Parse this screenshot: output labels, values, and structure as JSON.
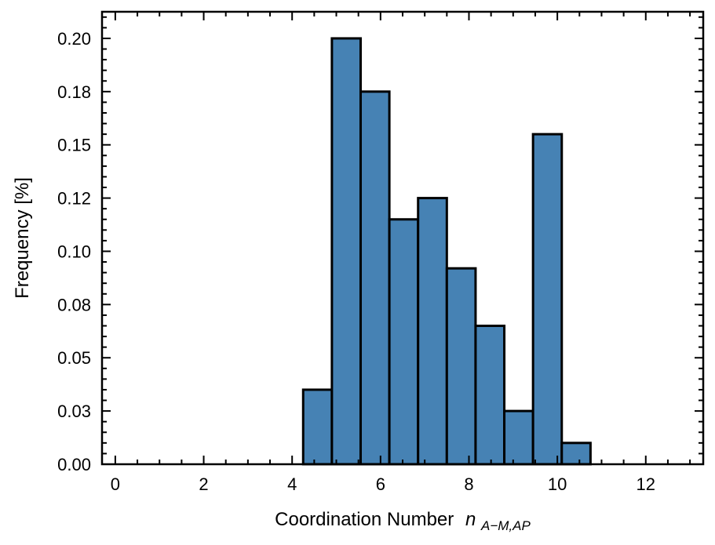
{
  "chart_data": {
    "type": "bar",
    "xlabel": "Coordination Number",
    "xlabel_math": {
      "base": "n",
      "subscript": "A−M,AP"
    },
    "ylabel": "Frequency [%]",
    "xlim": [
      -0.3,
      13.3
    ],
    "ylim": [
      0,
      0.2125
    ],
    "xticks": [
      0,
      2,
      4,
      6,
      8,
      10,
      12
    ],
    "xtick_labels": [
      "0",
      "2",
      "4",
      "6",
      "8",
      "10",
      "12"
    ],
    "yticks": [
      0,
      0.025,
      0.05,
      0.075,
      0.1,
      0.125,
      0.15,
      0.175,
      0.2
    ],
    "ytick_labels": [
      "0.00",
      "0.03",
      "0.05",
      "0.08",
      "0.10",
      "0.12",
      "0.15",
      "0.18",
      "0.20"
    ],
    "bin_edges": [
      0.35,
      1.0,
      1.65,
      2.3,
      2.95,
      3.6,
      4.25,
      4.9,
      5.55,
      6.2,
      6.85,
      7.5,
      8.15,
      8.8,
      9.45,
      10.1,
      10.75,
      11.4,
      12.05,
      12.7
    ],
    "values": [
      0,
      0,
      0,
      0,
      0,
      0,
      0.035,
      0.2,
      0.175,
      0.115,
      0.125,
      0.092,
      0.065,
      0.025,
      0.155,
      0.01,
      0,
      0,
      0
    ],
    "bar_color": "#4682b4",
    "edge_color": "#000000",
    "grid": false
  }
}
